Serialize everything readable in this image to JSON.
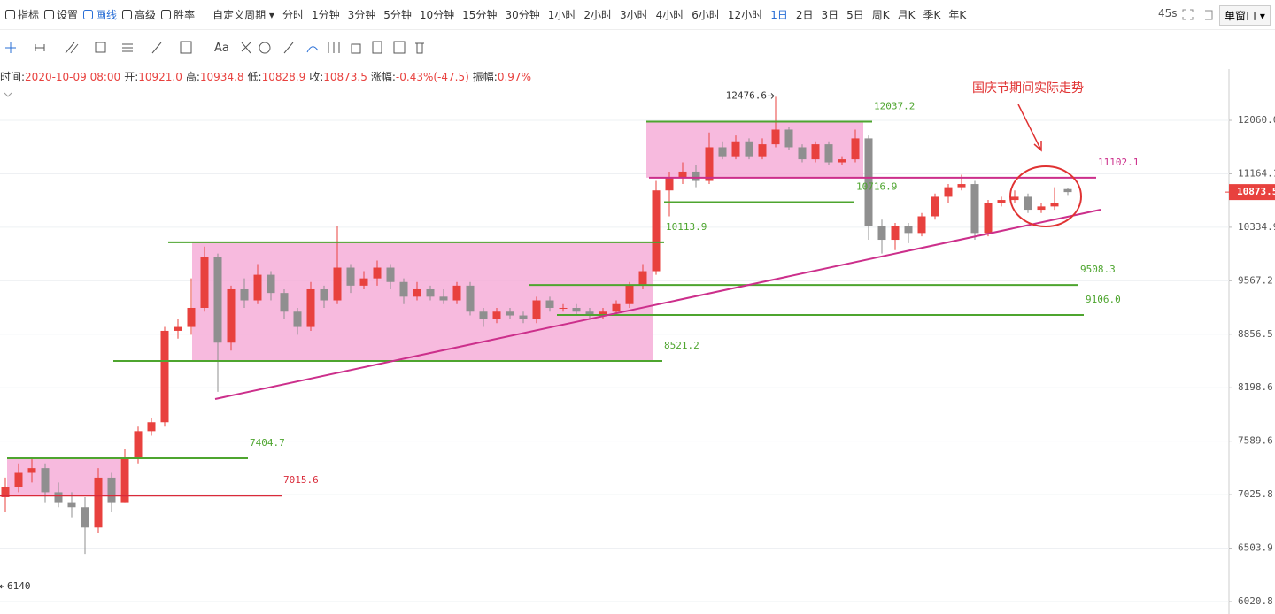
{
  "toolbar": {
    "tools": [
      "指标",
      "设置",
      "画线",
      "高级",
      "胜率"
    ],
    "custom_period": "自定义周期",
    "periods": [
      "分时",
      "1分钟",
      "3分钟",
      "5分钟",
      "10分钟",
      "15分钟",
      "30分钟",
      "1小时",
      "2小时",
      "3小时",
      "4小时",
      "6小时",
      "12小时",
      "1日",
      "2日",
      "3日",
      "5日",
      "周K",
      "月K",
      "季K",
      "年K"
    ],
    "active_period": 13,
    "refresh": "45s",
    "window_mode": "单窗口"
  },
  "drawing_toolbar": {
    "text_tool": "Aa"
  },
  "info": [
    {
      "label": "时间:",
      "value": "2020-10-09 08:00"
    },
    {
      "label": "开:",
      "value": "10921.0"
    },
    {
      "label": "高:",
      "value": "10934.8"
    },
    {
      "label": "低:",
      "value": "10828.9"
    },
    {
      "label": "收:",
      "value": "10873.5"
    },
    {
      "label": "涨幅:",
      "value": "-0.43%(-47.5)"
    },
    {
      "label": "振幅:",
      "value": "0.97%"
    }
  ],
  "chart_data": {
    "type": "candlestick",
    "log_scale": true,
    "grid": true,
    "up_color": "#e8413e",
    "down_color": "#8f8f8f",
    "ylim": [
      5914,
      12660
    ],
    "yticks": [
      {
        "value": 12060,
        "label": "12060.0"
      },
      {
        "value": 11164.1,
        "label": "11164.1"
      },
      {
        "value": 10334.9,
        "label": "10334.9"
      },
      {
        "value": 9567.2,
        "label": "9567.2"
      },
      {
        "value": 8856.5,
        "label": "8856.5"
      },
      {
        "value": 8198.6,
        "label": "8198.6"
      },
      {
        "value": 7589.6,
        "label": "7589.6"
      },
      {
        "value": 7025.8,
        "label": "7025.8"
      },
      {
        "value": 6503.9,
        "label": "6503.9"
      },
      {
        "value": 6020.8,
        "label": "6020.8"
      }
    ],
    "ohlc": [
      [
        7000,
        7200,
        6850,
        7100
      ],
      [
        7100,
        7350,
        7050,
        7250
      ],
      [
        7250,
        7400,
        7150,
        7300
      ],
      [
        7300,
        7350,
        6950,
        7050
      ],
      [
        7050,
        7150,
        6900,
        6950
      ],
      [
        6950,
        7050,
        6800,
        6900
      ],
      [
        6900,
        7000,
        6450,
        6700
      ],
      [
        6700,
        7300,
        6650,
        7200
      ],
      [
        7200,
        7250,
        6850,
        6950
      ],
      [
        6950,
        7500,
        6950,
        7400
      ],
      [
        7400,
        7750,
        7350,
        7700
      ],
      [
        7700,
        7850,
        7650,
        7800
      ],
      [
        7800,
        8950,
        7750,
        8900
      ],
      [
        8900,
        9050,
        8800,
        8950
      ],
      [
        8950,
        9600,
        8850,
        9200
      ],
      [
        9200,
        10050,
        9150,
        9900
      ],
      [
        9900,
        9950,
        8150,
        8750
      ],
      [
        8750,
        9500,
        8650,
        9450
      ],
      [
        9450,
        9600,
        9200,
        9300
      ],
      [
        9300,
        9800,
        9250,
        9650
      ],
      [
        9650,
        9700,
        9300,
        9400
      ],
      [
        9400,
        9450,
        9050,
        9150
      ],
      [
        9150,
        9200,
        8850,
        8950
      ],
      [
        8950,
        9550,
        8900,
        9450
      ],
      [
        9450,
        9500,
        9200,
        9300
      ],
      [
        9300,
        10350,
        9250,
        9750
      ],
      [
        9750,
        9800,
        9400,
        9500
      ],
      [
        9500,
        9700,
        9450,
        9600
      ],
      [
        9600,
        9850,
        9500,
        9750
      ],
      [
        9750,
        9800,
        9450,
        9550
      ],
      [
        9550,
        9600,
        9250,
        9350
      ],
      [
        9350,
        9550,
        9300,
        9450
      ],
      [
        9450,
        9500,
        9300,
        9350
      ],
      [
        9350,
        9450,
        9250,
        9300
      ],
      [
        9300,
        9550,
        9250,
        9500
      ],
      [
        9500,
        9550,
        9100,
        9150
      ],
      [
        9150,
        9200,
        8950,
        9050
      ],
      [
        9050,
        9200,
        9000,
        9150
      ],
      [
        9150,
        9200,
        9050,
        9100
      ],
      [
        9100,
        9150,
        9000,
        9050
      ],
      [
        9050,
        9350,
        9000,
        9300
      ],
      [
        9300,
        9350,
        9150,
        9200
      ],
      [
        9200,
        9250,
        9150,
        9200
      ],
      [
        9200,
        9250,
        9100,
        9150
      ],
      [
        9150,
        9200,
        9050,
        9100
      ],
      [
        9100,
        9200,
        9050,
        9150
      ],
      [
        9150,
        9300,
        9100,
        9250
      ],
      [
        9250,
        9550,
        9200,
        9500
      ],
      [
        9500,
        9800,
        9450,
        9700
      ],
      [
        9700,
        11050,
        9650,
        10900
      ],
      [
        10900,
        11200,
        10500,
        11100
      ],
      [
        11100,
        11350,
        11000,
        11200
      ],
      [
        11200,
        11300,
        10950,
        11050
      ],
      [
        11050,
        11850,
        11000,
        11600
      ],
      [
        11600,
        11700,
        11400,
        11450
      ],
      [
        11450,
        11800,
        11400,
        11700
      ],
      [
        11700,
        11750,
        11400,
        11450
      ],
      [
        11450,
        11750,
        11400,
        11650
      ],
      [
        11650,
        12476.6,
        11600,
        11900
      ],
      [
        11900,
        11950,
        11550,
        11600
      ],
      [
        11600,
        11650,
        11350,
        11400
      ],
      [
        11400,
        11700,
        11350,
        11650
      ],
      [
        11650,
        11700,
        11300,
        11350
      ],
      [
        11350,
        11450,
        11300,
        11400
      ],
      [
        11400,
        11900,
        11350,
        11750
      ],
      [
        11750,
        11800,
        10150,
        10350
      ],
      [
        10350,
        10450,
        9950,
        10150
      ],
      [
        10150,
        10400,
        10000,
        10350
      ],
      [
        10350,
        10400,
        10100,
        10250
      ],
      [
        10250,
        10550,
        10200,
        10500
      ],
      [
        10500,
        10850,
        10450,
        10800
      ],
      [
        10800,
        11000,
        10700,
        10950
      ],
      [
        10950,
        11150,
        10900,
        11000
      ],
      [
        11000,
        11050,
        10150,
        10250
      ],
      [
        10250,
        10750,
        10200,
        10700
      ],
      [
        10700,
        10800,
        10650,
        10750
      ],
      [
        10750,
        10900,
        10700,
        10800
      ],
      [
        10800,
        10850,
        10550,
        10600
      ],
      [
        10600,
        10700,
        10550,
        10650
      ],
      [
        10650,
        10950,
        10600,
        10700
      ],
      [
        10921.0,
        10934.8,
        10828.9,
        10873.5
      ]
    ],
    "levels": [
      {
        "value": 12037.2,
        "color": "#4ea52f"
      },
      {
        "value": 10113.9,
        "color": "#4ea52f"
      },
      {
        "value": 10716.9,
        "color": "#4ea52f"
      },
      {
        "value": 11102.1,
        "color": "#cc2f8b"
      },
      {
        "value": 9508.3,
        "color": "#4ea52f"
      },
      {
        "value": 9106.0,
        "label": "9106.0",
        "color": "#4ea52f"
      },
      {
        "value": 8521.2,
        "color": "#4ea52f"
      },
      {
        "value": 7404.7,
        "color": "#4ea52f"
      },
      {
        "value": 7015.6,
        "color": "#d92b3a"
      }
    ],
    "box_color": "#f5a9d6",
    "trend_color": "#cc2f8b",
    "low_mark": 6140,
    "annotation": "国庆节期间实际走势"
  }
}
